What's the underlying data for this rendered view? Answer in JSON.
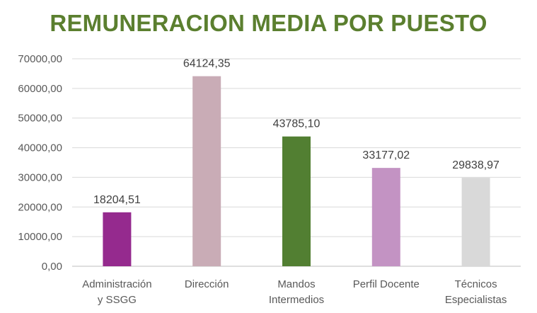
{
  "chart_data": {
    "type": "bar",
    "title": "REMUNERACION MEDIA POR PUESTO",
    "xlabel": "",
    "ylabel": "",
    "ylim": [
      0,
      70000
    ],
    "yticks": [
      0,
      10000,
      20000,
      30000,
      40000,
      50000,
      60000,
      70000
    ],
    "ytick_labels": [
      "0,00",
      "10000,00",
      "20000,00",
      "30000,00",
      "40000,00",
      "50000,00",
      "60000,00",
      "70000,00"
    ],
    "grid": true,
    "categories": [
      [
        "Administración",
        "y SSGG"
      ],
      [
        "Dirección"
      ],
      [
        "Mandos",
        "Intermedios"
      ],
      [
        "Perfil Docente"
      ],
      [
        "Técnicos",
        "Especialistas"
      ]
    ],
    "values": [
      18204.51,
      64124.35,
      43785.1,
      33177.02,
      29838.97
    ],
    "value_labels": [
      "18204,51",
      "64124,35",
      "43785,10",
      "33177,02",
      "29838,97"
    ],
    "colors": [
      "#952a8e",
      "#c9acb6",
      "#527f32",
      "#c393c3",
      "#d9d9d9"
    ],
    "title_color": "#5b7f2f",
    "grid_color": "#d9d9d9"
  }
}
